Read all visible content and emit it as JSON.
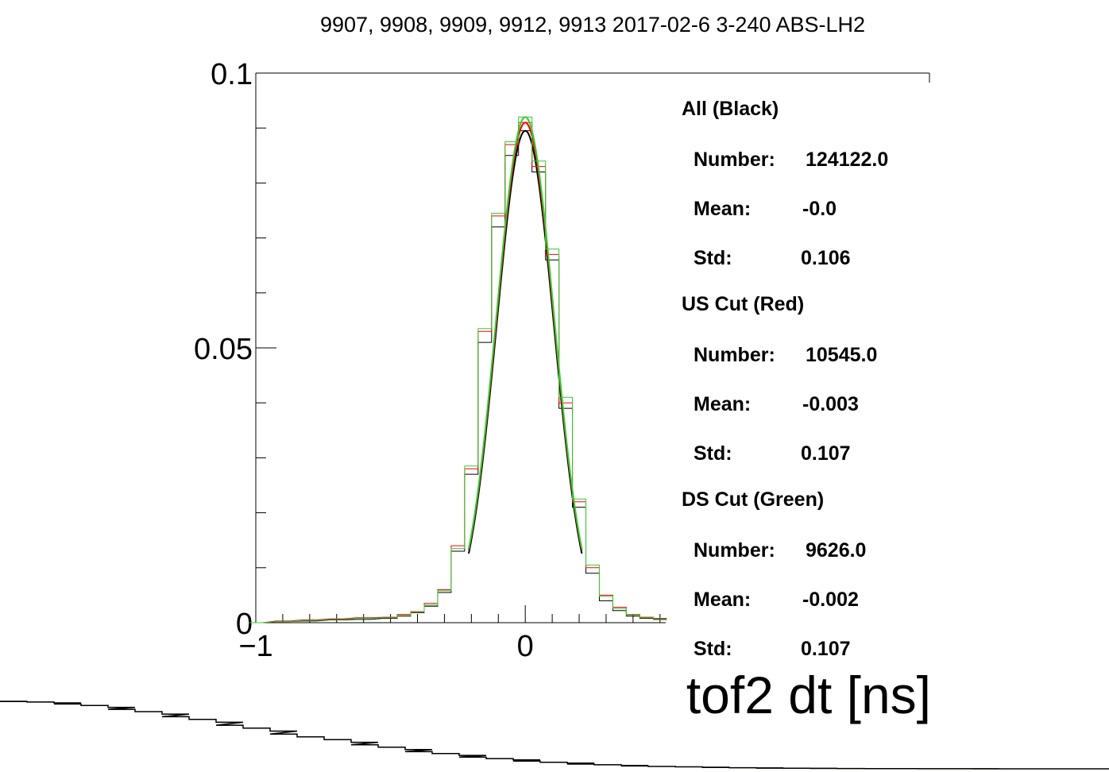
{
  "chart_data": {
    "type": "line",
    "title": "9907, 9908, 9909, 9912, 9913 2017-02-6 3-240 ABS-LH2",
    "xlabel": "tof2 dt [ns]",
    "ylabel": "",
    "xlim": [
      -1,
      1.5
    ],
    "ylim": [
      0,
      0.1
    ],
    "x_ticks": [
      {
        "value": -1,
        "label": "−1"
      },
      {
        "value": 0,
        "label": "0"
      }
    ],
    "y_ticks": [
      {
        "value": 0,
        "label": "0"
      },
      {
        "value": 0.05,
        "label": "0.05"
      },
      {
        "value": 0.1,
        "label": "0.1"
      }
    ],
    "bin_width": 0.05,
    "series": [
      {
        "name": "All (Black)",
        "color": "#000000",
        "style": "histogram+gaussian",
        "fit_peak": 0.0895,
        "fit_sigma": 0.106,
        "bins": [
          [
            -1.0,
            0.0
          ],
          [
            -0.9,
            0.0002
          ],
          [
            -0.8,
            0.0003
          ],
          [
            -0.7,
            0.0005
          ],
          [
            -0.6,
            0.0006
          ],
          [
            -0.5,
            0.0008
          ],
          [
            -0.45,
            0.0012
          ],
          [
            -0.4,
            0.0018
          ],
          [
            -0.35,
            0.003
          ],
          [
            -0.3,
            0.0055
          ],
          [
            -0.25,
            0.013
          ],
          [
            -0.2,
            0.027
          ],
          [
            -0.15,
            0.051
          ],
          [
            -0.1,
            0.072
          ],
          [
            -0.05,
            0.085
          ],
          [
            0.0,
            0.0895
          ],
          [
            0.05,
            0.082
          ],
          [
            0.1,
            0.066
          ],
          [
            0.15,
            0.039
          ],
          [
            0.2,
            0.021
          ],
          [
            0.25,
            0.009
          ],
          [
            0.3,
            0.004
          ],
          [
            0.35,
            0.0022
          ],
          [
            0.4,
            0.0012
          ],
          [
            0.45,
            0.0008
          ],
          [
            0.5,
            0.0006
          ]
        ]
      },
      {
        "name": "US Cut (Red)",
        "color": "#ff0000",
        "style": "histogram+gaussian",
        "fit_peak": 0.091,
        "fit_sigma": 0.107,
        "bins": [
          [
            -1.0,
            0.0
          ],
          [
            -0.9,
            0.0003
          ],
          [
            -0.8,
            0.0005
          ],
          [
            -0.7,
            0.0007
          ],
          [
            -0.6,
            0.0009
          ],
          [
            -0.5,
            0.001
          ],
          [
            -0.45,
            0.0015
          ],
          [
            -0.4,
            0.002
          ],
          [
            -0.35,
            0.0035
          ],
          [
            -0.3,
            0.006
          ],
          [
            -0.25,
            0.014
          ],
          [
            -0.2,
            0.028
          ],
          [
            -0.15,
            0.053
          ],
          [
            -0.1,
            0.074
          ],
          [
            -0.05,
            0.087
          ],
          [
            0.0,
            0.091
          ],
          [
            0.05,
            0.083
          ],
          [
            0.1,
            0.067
          ],
          [
            0.15,
            0.04
          ],
          [
            0.2,
            0.022
          ],
          [
            0.25,
            0.01
          ],
          [
            0.3,
            0.005
          ],
          [
            0.35,
            0.0028
          ],
          [
            0.4,
            0.0015
          ],
          [
            0.45,
            0.001
          ],
          [
            0.5,
            0.0008
          ]
        ]
      },
      {
        "name": "DS Cut (Green)",
        "color": "#33cc33",
        "style": "histogram+gaussian",
        "fit_peak": 0.092,
        "fit_sigma": 0.107,
        "bins": [
          [
            -1.0,
            0.0
          ],
          [
            -0.9,
            0.0002
          ],
          [
            -0.8,
            0.0004
          ],
          [
            -0.7,
            0.0006
          ],
          [
            -0.6,
            0.0008
          ],
          [
            -0.5,
            0.0009
          ],
          [
            -0.45,
            0.0013
          ],
          [
            -0.4,
            0.0019
          ],
          [
            -0.35,
            0.0032
          ],
          [
            -0.3,
            0.0058
          ],
          [
            -0.25,
            0.0135
          ],
          [
            -0.2,
            0.0285
          ],
          [
            -0.15,
            0.0535
          ],
          [
            -0.1,
            0.0745
          ],
          [
            -0.05,
            0.0875
          ],
          [
            0.0,
            0.092
          ],
          [
            0.05,
            0.084
          ],
          [
            0.1,
            0.068
          ],
          [
            0.15,
            0.041
          ],
          [
            0.2,
            0.0225
          ],
          [
            0.25,
            0.0105
          ],
          [
            0.3,
            0.0048
          ],
          [
            0.35,
            0.0026
          ],
          [
            0.4,
            0.0014
          ],
          [
            0.45,
            0.0009
          ],
          [
            0.5,
            0.0007
          ]
        ]
      }
    ],
    "grid": false,
    "legend_position": "right"
  },
  "stats": [
    {
      "heading": "All (Black)",
      "number_label": "Number:",
      "number": "124122.0",
      "mean_label": "Mean:",
      "mean": "-0.0",
      "std_label": "Std:",
      "std": "0.106"
    },
    {
      "heading": "US Cut (Red)",
      "number_label": "Number:",
      "number": "10545.0",
      "mean_label": "Mean:",
      "mean": "-0.003",
      "std_label": "Std:",
      "std": "0.107"
    },
    {
      "heading": "DS Cut (Green)",
      "number_label": "Number:",
      "number": "9626.0",
      "mean_label": "Mean:",
      "mean": "-0.002",
      "std_label": "Std:",
      "std": "0.107"
    }
  ]
}
